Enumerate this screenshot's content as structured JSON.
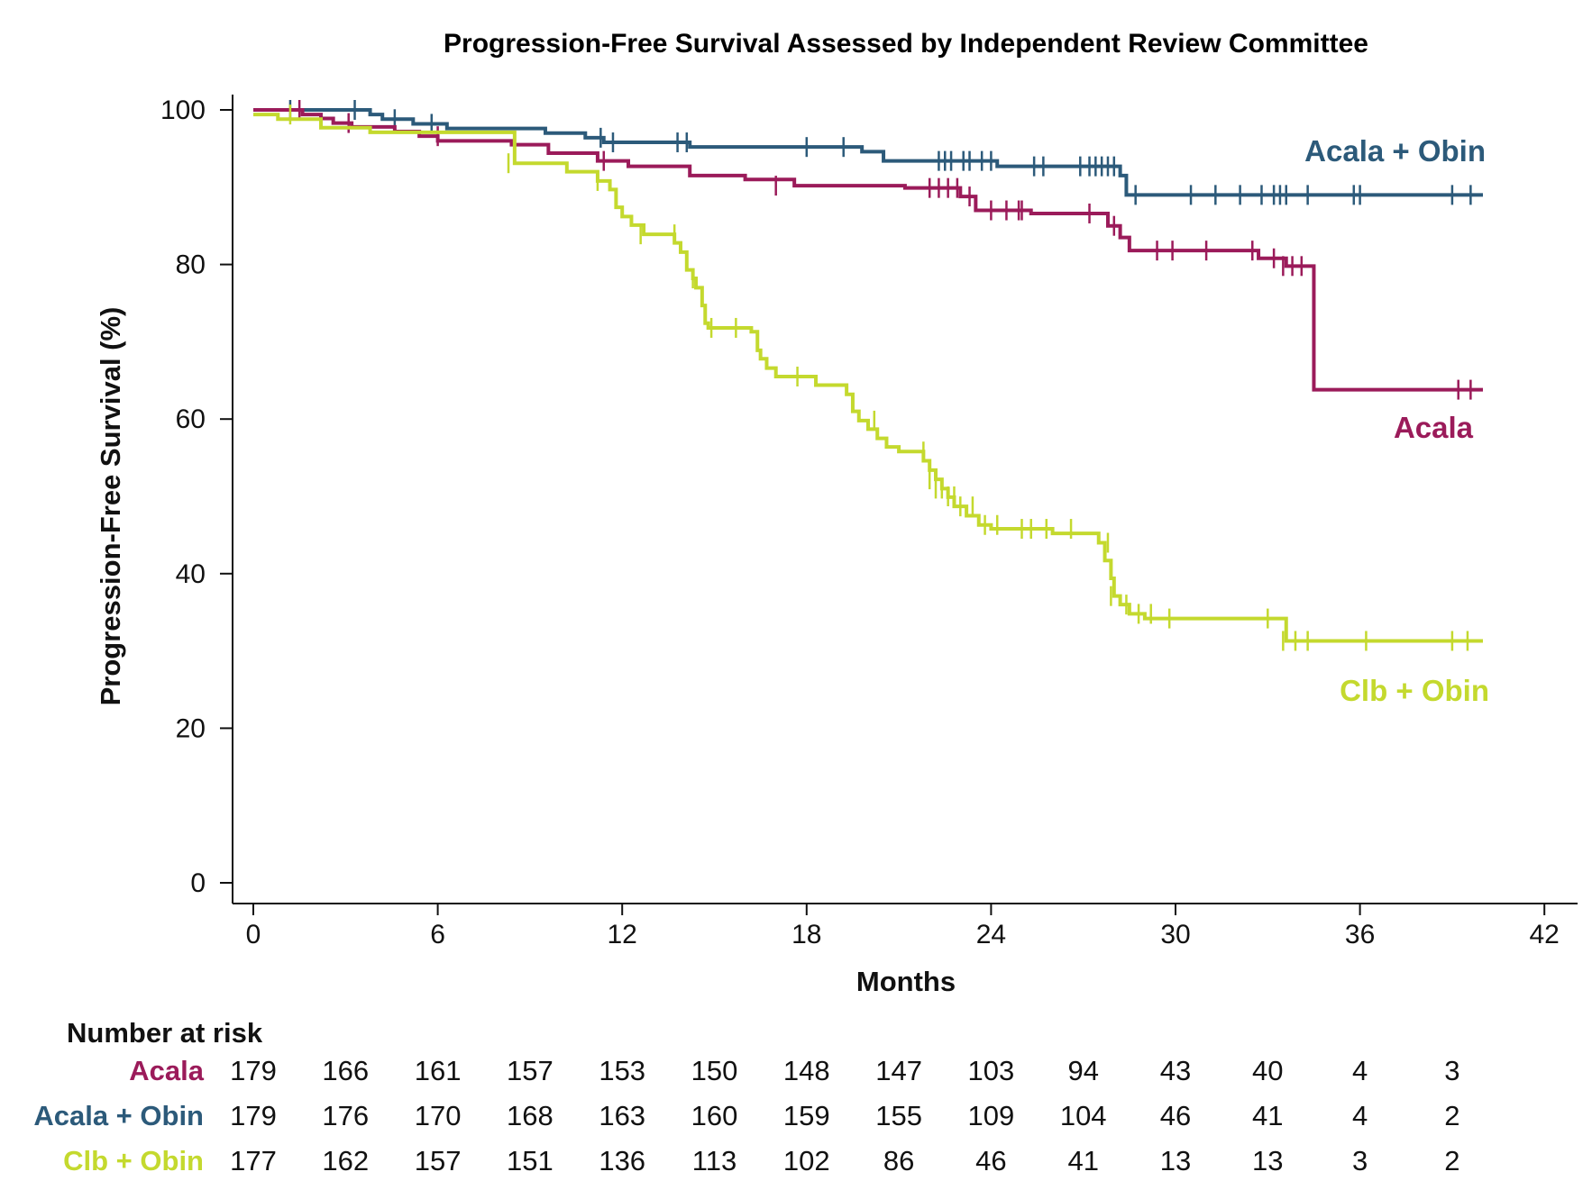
{
  "chart_data": {
    "type": "line",
    "title": "Progression-Free Survival Assessed by Independent Review Committee",
    "xlabel": "Months",
    "ylabel": "Progression-Free Survival (%)",
    "xlim": [
      0,
      42
    ],
    "ylim": [
      0,
      100
    ],
    "xticks": [
      "0",
      "6",
      "12",
      "18",
      "24",
      "30",
      "36",
      "42"
    ],
    "yticks": [
      "0",
      "20",
      "40",
      "60",
      "80",
      "100"
    ],
    "grid": false,
    "colors": {
      "Acala": "#9B1B5A",
      "Acala + Obin": "#2C5A7A",
      "Clb + Obin": "#C4D92E"
    },
    "series": [
      {
        "name": "Acala + Obin",
        "steps": [
          [
            0,
            100
          ],
          [
            3.8,
            99.4
          ],
          [
            4.2,
            98.8
          ],
          [
            5.2,
            98.2
          ],
          [
            6.3,
            97.6
          ],
          [
            9.5,
            97.0
          ],
          [
            10.8,
            96.4
          ],
          [
            11.4,
            95.8
          ],
          [
            14.2,
            95.2
          ],
          [
            19.8,
            94.6
          ],
          [
            20.5,
            93.4
          ],
          [
            22.0,
            93.4
          ],
          [
            24.2,
            92.7
          ],
          [
            28.2,
            91.5
          ],
          [
            28.4,
            89.0
          ],
          [
            40.0,
            89.0
          ]
        ],
        "censors": [
          [
            1.2,
            100
          ],
          [
            3.3,
            100
          ],
          [
            4.6,
            98.8
          ],
          [
            5.8,
            98.2
          ],
          [
            11.3,
            96.4
          ],
          [
            11.7,
            95.8
          ],
          [
            13.8,
            95.8
          ],
          [
            14.1,
            95.8
          ],
          [
            18.0,
            95.2
          ],
          [
            19.2,
            95.2
          ],
          [
            22.3,
            93.4
          ],
          [
            22.5,
            93.4
          ],
          [
            22.7,
            93.4
          ],
          [
            23.1,
            93.4
          ],
          [
            23.3,
            93.4
          ],
          [
            23.7,
            93.4
          ],
          [
            24.0,
            93.4
          ],
          [
            25.4,
            92.7
          ],
          [
            25.7,
            92.7
          ],
          [
            26.9,
            92.7
          ],
          [
            27.2,
            92.7
          ],
          [
            27.4,
            92.7
          ],
          [
            27.6,
            92.7
          ],
          [
            27.8,
            92.7
          ],
          [
            28.0,
            92.7
          ],
          [
            28.7,
            89.0
          ],
          [
            30.5,
            89.0
          ],
          [
            31.3,
            89.0
          ],
          [
            32.1,
            89.0
          ],
          [
            32.8,
            89.0
          ],
          [
            33.2,
            89.0
          ],
          [
            33.4,
            89.0
          ],
          [
            33.6,
            89.0
          ],
          [
            34.3,
            89.0
          ],
          [
            35.8,
            89.0
          ],
          [
            36.0,
            89.0
          ],
          [
            39.0,
            89.0
          ],
          [
            39.6,
            89.0
          ]
        ],
        "label": "Acala + Obin"
      },
      {
        "name": "Acala",
        "steps": [
          [
            0,
            100
          ],
          [
            1.6,
            99.4
          ],
          [
            2.2,
            98.9
          ],
          [
            2.6,
            98.3
          ],
          [
            3.2,
            97.8
          ],
          [
            4.6,
            97.2
          ],
          [
            5.4,
            96.6
          ],
          [
            6.0,
            96.0
          ],
          [
            8.4,
            95.5
          ],
          [
            9.6,
            94.4
          ],
          [
            11.2,
            93.4
          ],
          [
            12.2,
            92.7
          ],
          [
            14.2,
            91.5
          ],
          [
            16.0,
            91.0
          ],
          [
            17.6,
            90.2
          ],
          [
            21.2,
            89.9
          ],
          [
            23.0,
            88.8
          ],
          [
            23.5,
            87.0
          ],
          [
            25.3,
            86.6
          ],
          [
            27.8,
            85.0
          ],
          [
            28.2,
            83.5
          ],
          [
            28.5,
            81.8
          ],
          [
            32.7,
            80.8
          ],
          [
            33.6,
            79.8
          ],
          [
            34.5,
            63.8
          ],
          [
            40.0,
            63.8
          ]
        ],
        "censors": [
          [
            1.5,
            100
          ],
          [
            3.1,
            98.3
          ],
          [
            6.0,
            96.6
          ],
          [
            11.4,
            93.4
          ],
          [
            17.0,
            90.2
          ],
          [
            22.0,
            89.9
          ],
          [
            22.3,
            89.9
          ],
          [
            22.6,
            89.9
          ],
          [
            22.9,
            89.9
          ],
          [
            23.3,
            88.8
          ],
          [
            24.0,
            87.0
          ],
          [
            24.5,
            87.0
          ],
          [
            24.9,
            87.0
          ],
          [
            25.0,
            87.0
          ],
          [
            27.2,
            86.6
          ],
          [
            28.0,
            85.0
          ],
          [
            29.4,
            81.8
          ],
          [
            29.9,
            81.8
          ],
          [
            31.0,
            81.8
          ],
          [
            32.5,
            81.8
          ],
          [
            33.2,
            80.8
          ],
          [
            33.5,
            79.8
          ],
          [
            33.8,
            79.8
          ],
          [
            34.1,
            79.8
          ],
          [
            39.2,
            63.8
          ],
          [
            39.6,
            63.8
          ]
        ],
        "label": "Acala"
      },
      {
        "name": "Clb + Obin",
        "steps": [
          [
            0,
            99.4
          ],
          [
            0.8,
            98.8
          ],
          [
            2.2,
            97.7
          ],
          [
            3.8,
            97.1
          ],
          [
            8.5,
            93.1
          ],
          [
            10.2,
            92.0
          ],
          [
            11.2,
            90.8
          ],
          [
            11.6,
            89.7
          ],
          [
            11.8,
            87.4
          ],
          [
            12.0,
            86.2
          ],
          [
            12.3,
            85.1
          ],
          [
            12.7,
            83.9
          ],
          [
            13.7,
            82.8
          ],
          [
            13.9,
            81.6
          ],
          [
            14.1,
            79.3
          ],
          [
            14.3,
            78.2
          ],
          [
            14.4,
            77.0
          ],
          [
            14.6,
            74.7
          ],
          [
            14.7,
            72.4
          ],
          [
            14.8,
            71.8
          ],
          [
            16.2,
            71.3
          ],
          [
            16.4,
            68.9
          ],
          [
            16.5,
            67.8
          ],
          [
            16.7,
            66.6
          ],
          [
            17.0,
            65.5
          ],
          [
            18.3,
            64.4
          ],
          [
            19.3,
            63.2
          ],
          [
            19.5,
            61.0
          ],
          [
            19.7,
            59.8
          ],
          [
            20.0,
            58.7
          ],
          [
            20.3,
            57.5
          ],
          [
            20.6,
            56.4
          ],
          [
            21.0,
            55.8
          ],
          [
            21.8,
            54.6
          ],
          [
            22.0,
            53.4
          ],
          [
            22.2,
            52.2
          ],
          [
            22.4,
            51.0
          ],
          [
            22.6,
            49.9
          ],
          [
            22.8,
            48.7
          ],
          [
            23.2,
            47.5
          ],
          [
            23.6,
            46.3
          ],
          [
            24.0,
            45.8
          ],
          [
            26.0,
            45.2
          ],
          [
            27.5,
            44.0
          ],
          [
            27.7,
            41.7
          ],
          [
            27.9,
            39.4
          ],
          [
            28.0,
            37.1
          ],
          [
            28.2,
            36.0
          ],
          [
            28.5,
            34.8
          ],
          [
            29.0,
            34.2
          ],
          [
            33.6,
            31.3
          ],
          [
            40.0,
            31.3
          ]
        ],
        "censors": [
          [
            1.2,
            99.4
          ],
          [
            8.3,
            93.1
          ],
          [
            11.2,
            90.8
          ],
          [
            12.6,
            83.9
          ],
          [
            13.7,
            83.9
          ],
          [
            14.3,
            78.2
          ],
          [
            14.9,
            71.8
          ],
          [
            15.7,
            71.8
          ],
          [
            17.7,
            65.5
          ],
          [
            20.2,
            59.8
          ],
          [
            21.8,
            55.8
          ],
          [
            22.0,
            52.2
          ],
          [
            22.2,
            51.0
          ],
          [
            22.4,
            51.0
          ],
          [
            22.6,
            50.0
          ],
          [
            22.8,
            50.0
          ],
          [
            23.0,
            48.7
          ],
          [
            23.4,
            48.7
          ],
          [
            23.8,
            46.3
          ],
          [
            24.2,
            46.3
          ],
          [
            25.0,
            45.8
          ],
          [
            25.3,
            45.8
          ],
          [
            25.8,
            45.8
          ],
          [
            26.6,
            45.8
          ],
          [
            27.8,
            44.0
          ],
          [
            27.9,
            37.1
          ],
          [
            28.4,
            36.0
          ],
          [
            28.8,
            34.8
          ],
          [
            29.2,
            34.8
          ],
          [
            29.8,
            34.2
          ],
          [
            33.0,
            34.2
          ],
          [
            33.5,
            31.3
          ],
          [
            33.9,
            31.3
          ],
          [
            34.3,
            31.3
          ],
          [
            36.2,
            31.3
          ],
          [
            39.0,
            31.3
          ],
          [
            39.5,
            31.3
          ]
        ],
        "label": "Clb + Obin"
      }
    ]
  },
  "risk_table": {
    "title": "Number at risk",
    "rows": [
      {
        "name": "Acala",
        "color": "#9B1B5A",
        "values": [
          "179",
          "166",
          "161",
          "157",
          "153",
          "150",
          "148",
          "147",
          "103",
          "94",
          "43",
          "40",
          "4",
          "3"
        ]
      },
      {
        "name": "Acala + Obin",
        "color": "#2C5A7A",
        "values": [
          "179",
          "176",
          "170",
          "168",
          "163",
          "160",
          "159",
          "155",
          "109",
          "104",
          "46",
          "41",
          "4",
          "2"
        ]
      },
      {
        "name": "Clb + Obin",
        "color": "#C4D92E",
        "values": [
          "177",
          "162",
          "157",
          "151",
          "136",
          "113",
          "102",
          "86",
          "46",
          "41",
          "13",
          "13",
          "3",
          "2"
        ]
      }
    ]
  }
}
